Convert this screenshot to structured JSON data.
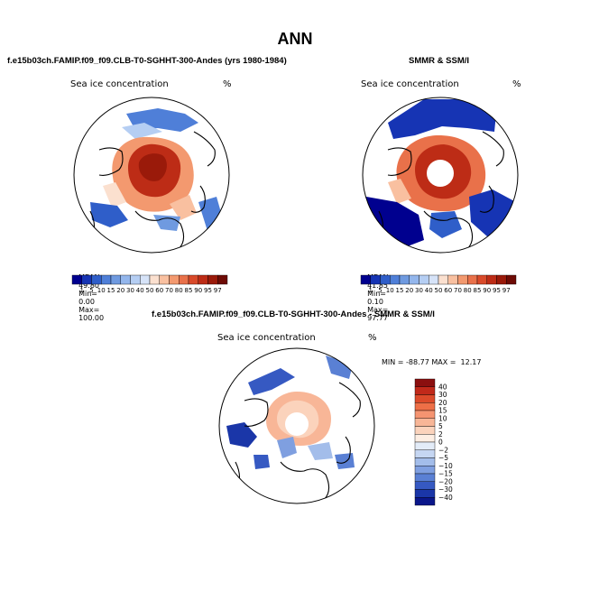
{
  "figure": {
    "title": "ANN"
  },
  "panels": [
    {
      "title": "f.e15b03ch.FAMIP.f09_f09.CLB-T0-SGHHT-300-Andes (yrs 1980-1984)",
      "variable": "Sea ice concentration",
      "units": "%",
      "stats": {
        "mean_label": "MEAN=",
        "mean": "49.80",
        "min_label": "Min=",
        "min": "0.00",
        "max_label": "Max=",
        "max": "100.00"
      }
    },
    {
      "title": "SMMR & SSM/I",
      "variable": "Sea ice concentration",
      "units": "%",
      "stats": {
        "mean_label": "MEAN=",
        "mean": "41.85",
        "min_label": "Min=",
        "min": "0.10",
        "max_label": "Max=",
        "max": "97.77"
      }
    },
    {
      "title": "f.e15b03ch.FAMIP.f09_f09.CLB-T0-SGHHT-300-Andes - SMMR & SSM/I",
      "variable": "Sea ice concentration",
      "units": "%",
      "diff_stats": "MIN = -88.77 MAX =  12.17"
    }
  ],
  "abs_colorbar": {
    "levels": [
      "1",
      "5",
      "10",
      "15",
      "20",
      "30",
      "40",
      "50",
      "60",
      "70",
      "80",
      "85",
      "90",
      "95",
      "97"
    ],
    "colors": [
      "#00008f",
      "#1634b4",
      "#2f5ec9",
      "#4f7fd8",
      "#6f9ae0",
      "#93b6ec",
      "#b5cef3",
      "#d6e3f8",
      "#fbe0cf",
      "#f9c0a0",
      "#f3996f",
      "#e9714a",
      "#d94a2a",
      "#bd2c16",
      "#9a1a0a",
      "#6e0b05"
    ]
  },
  "diff_colorbar": {
    "levels": [
      "40",
      "30",
      "20",
      "15",
      "10",
      "5",
      "2",
      "0",
      "−2",
      "−5",
      "−10",
      "−15",
      "−20",
      "−30",
      "−40"
    ],
    "colors": [
      "#8b0f0f",
      "#c1291a",
      "#dc4a2a",
      "#ee6f47",
      "#f59471",
      "#f8b697",
      "#fbd3bc",
      "#fdeee3",
      "#e3ecf8",
      "#c5d6f2",
      "#a3bdea",
      "#7f9fe0",
      "#5a80d4",
      "#3659c2",
      "#1a36a8",
      "#0a168a"
    ]
  },
  "chart_data": [
    {
      "type": "heatmap",
      "title": "f.e15b03ch.FAMIP.f09_f09.CLB-T0-SGHHT-300-Andes (yrs 1980-1984)",
      "projection": "north-polar-stereographic",
      "field": "Sea ice concentration (%)",
      "mean": 49.8,
      "min": 0.0,
      "max": 100.0,
      "regions": [
        {
          "name": "central-arctic",
          "value": 97
        },
        {
          "name": "arctic-margin",
          "value": 70
        },
        {
          "name": "marginal-ice",
          "value": 40
        },
        {
          "name": "greenland-sea",
          "value": 15
        },
        {
          "name": "barents-sea",
          "value": 5
        },
        {
          "name": "pacific-margin",
          "value": 10
        }
      ]
    },
    {
      "type": "heatmap",
      "title": "SMMR & SSM/I",
      "projection": "north-polar-stereographic",
      "field": "Sea ice concentration (%)",
      "mean": 41.85,
      "min": 0.1,
      "max": 97.77,
      "regions": [
        {
          "name": "central-arctic",
          "value": 95
        },
        {
          "name": "arctic-margin",
          "value": 80
        },
        {
          "name": "hudson-baffin",
          "value": 5
        },
        {
          "name": "greenland-sea",
          "value": 1
        },
        {
          "name": "bering-okhotsk",
          "value": 1
        },
        {
          "name": "barents-sea",
          "value": 15
        },
        {
          "name": "pole-hole",
          "value": null
        }
      ]
    },
    {
      "type": "heatmap",
      "title": "f.e15b03ch.FAMIP.f09_f09.CLB-T0-SGHHT-300-Andes - SMMR & SSM/I",
      "projection": "north-polar-stereographic",
      "field": "Sea ice concentration difference (%)",
      "min": -88.77,
      "max": 12.17,
      "regions": [
        {
          "name": "central-arctic",
          "value": 5
        },
        {
          "name": "arctic-margin",
          "value": 10
        },
        {
          "name": "greenland-barents",
          "value": -10
        },
        {
          "name": "bering-okhotsk",
          "value": -30
        },
        {
          "name": "baffin-labrador",
          "value": -15
        },
        {
          "name": "pole-hole",
          "value": null
        }
      ]
    }
  ]
}
